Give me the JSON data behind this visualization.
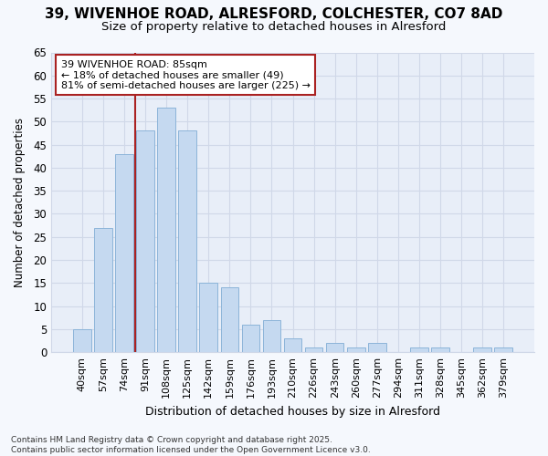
{
  "title_line1": "39, WIVENHOE ROAD, ALRESFORD, COLCHESTER, CO7 8AD",
  "title_line2": "Size of property relative to detached houses in Alresford",
  "xlabel": "Distribution of detached houses by size in Alresford",
  "ylabel": "Number of detached properties",
  "categories": [
    "40sqm",
    "57sqm",
    "74sqm",
    "91sqm",
    "108sqm",
    "125sqm",
    "142sqm",
    "159sqm",
    "176sqm",
    "193sqm",
    "210sqm",
    "226sqm",
    "243sqm",
    "260sqm",
    "277sqm",
    "294sqm",
    "311sqm",
    "328sqm",
    "345sqm",
    "362sqm",
    "379sqm"
  ],
  "values": [
    5,
    27,
    43,
    48,
    53,
    48,
    15,
    14,
    6,
    7,
    3,
    1,
    2,
    1,
    2,
    0,
    1,
    1,
    0,
    1,
    1
  ],
  "bar_color": "#c5d9f0",
  "bar_edge_color": "#8cb4d9",
  "ylim": [
    0,
    65
  ],
  "yticks": [
    0,
    5,
    10,
    15,
    20,
    25,
    30,
    35,
    40,
    45,
    50,
    55,
    60,
    65
  ],
  "vline_x": 2.5,
  "vline_color": "#aa2222",
  "annotation_text": "39 WIVENHOE ROAD: 85sqm\n← 18% of detached houses are smaller (49)\n81% of semi-detached houses are larger (225) →",
  "annotation_box_facecolor": "#ffffff",
  "annotation_box_edgecolor": "#aa2222",
  "footer_text": "Contains HM Land Registry data © Crown copyright and database right 2025.\nContains public sector information licensed under the Open Government Licence v3.0.",
  "bg_color": "#f5f8fd",
  "plot_bg_color": "#e8eef8",
  "grid_color": "#d0d8e8",
  "title_fontsize": 11,
  "subtitle_fontsize": 9.5,
  "ylabel_fontsize": 8.5,
  "xlabel_fontsize": 9,
  "tick_fontsize": 8.5,
  "xtick_fontsize": 8
}
